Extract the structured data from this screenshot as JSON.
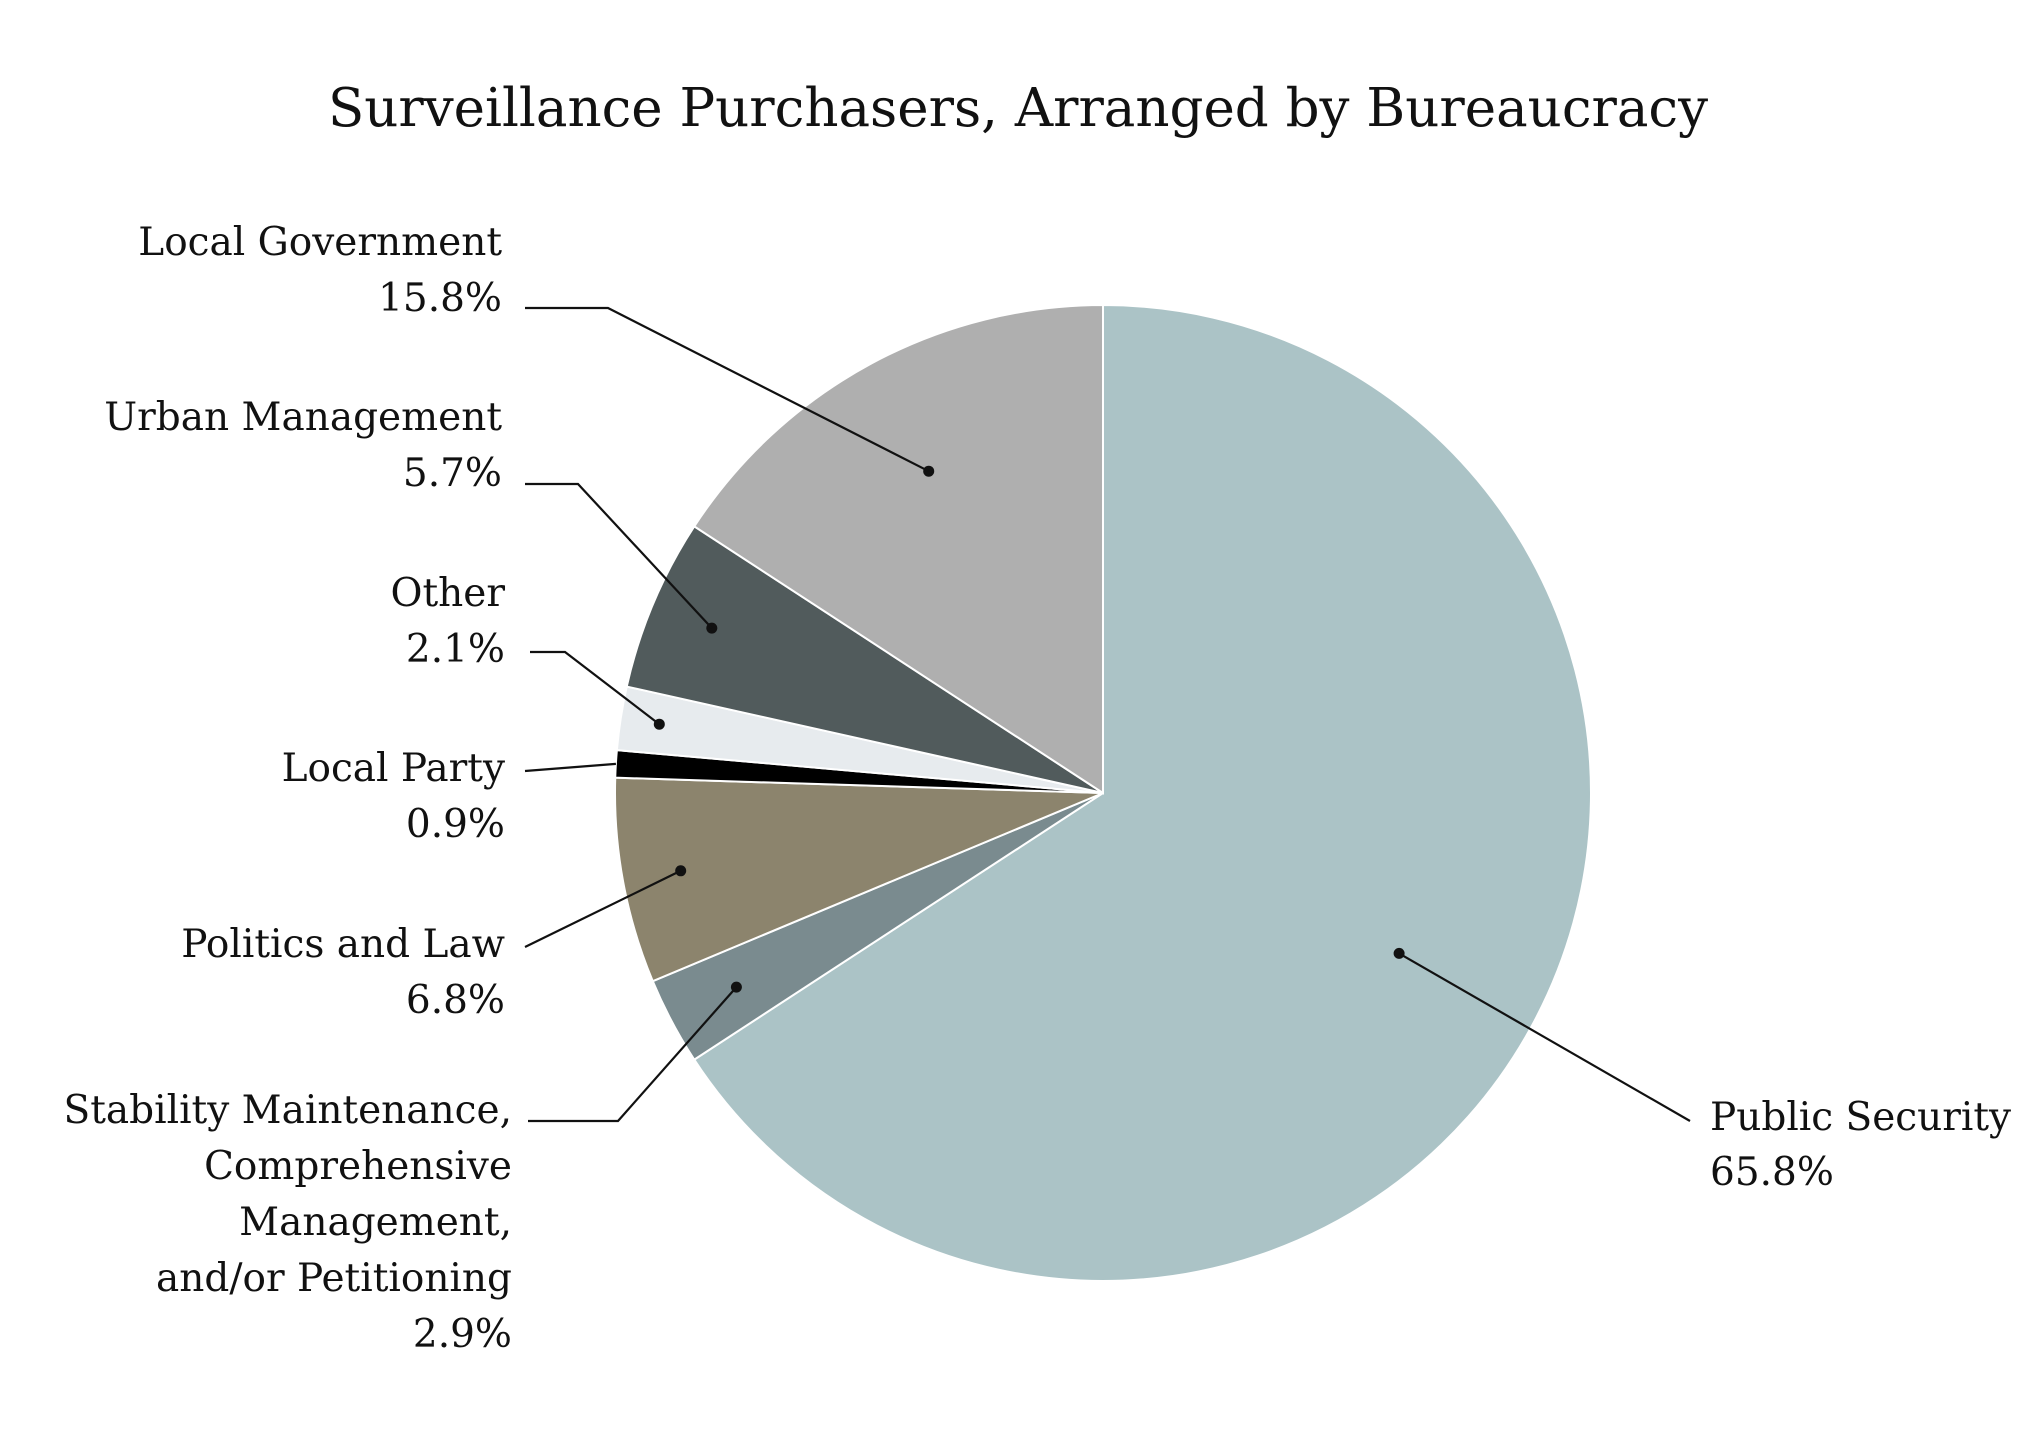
{
  "chart_data": {
    "type": "pie",
    "title": "Surveillance Purchasers, Arranged by Bureaucracy",
    "start_angle_deg": 0,
    "direction": "clockwise",
    "slices": [
      {
        "label": "Public Security",
        "value_label": "65.8%",
        "value": 65.8,
        "color": "#abc3c6"
      },
      {
        "label": "Stability Maintenance, Comprehensive Management, and/or Petitioning",
        "value_label": "2.9%",
        "value": 2.9,
        "color": "#7a8b8f"
      },
      {
        "label": "Politics and Law",
        "value_label": "6.8%",
        "value": 6.8,
        "color": "#8c846d"
      },
      {
        "label": "Local Party",
        "value_label": "0.9%",
        "value": 0.9,
        "color": "#000000"
      },
      {
        "label": "Other",
        "value_label": "2.1%",
        "value": 2.1,
        "color": "#e7ebee"
      },
      {
        "label": "Urban Management",
        "value_label": "5.7%",
        "value": 5.7,
        "color": "#515b5c"
      },
      {
        "label": "Local Government",
        "value_label": "15.8%",
        "value": 15.8,
        "color": "#afafaf"
      }
    ]
  }
}
